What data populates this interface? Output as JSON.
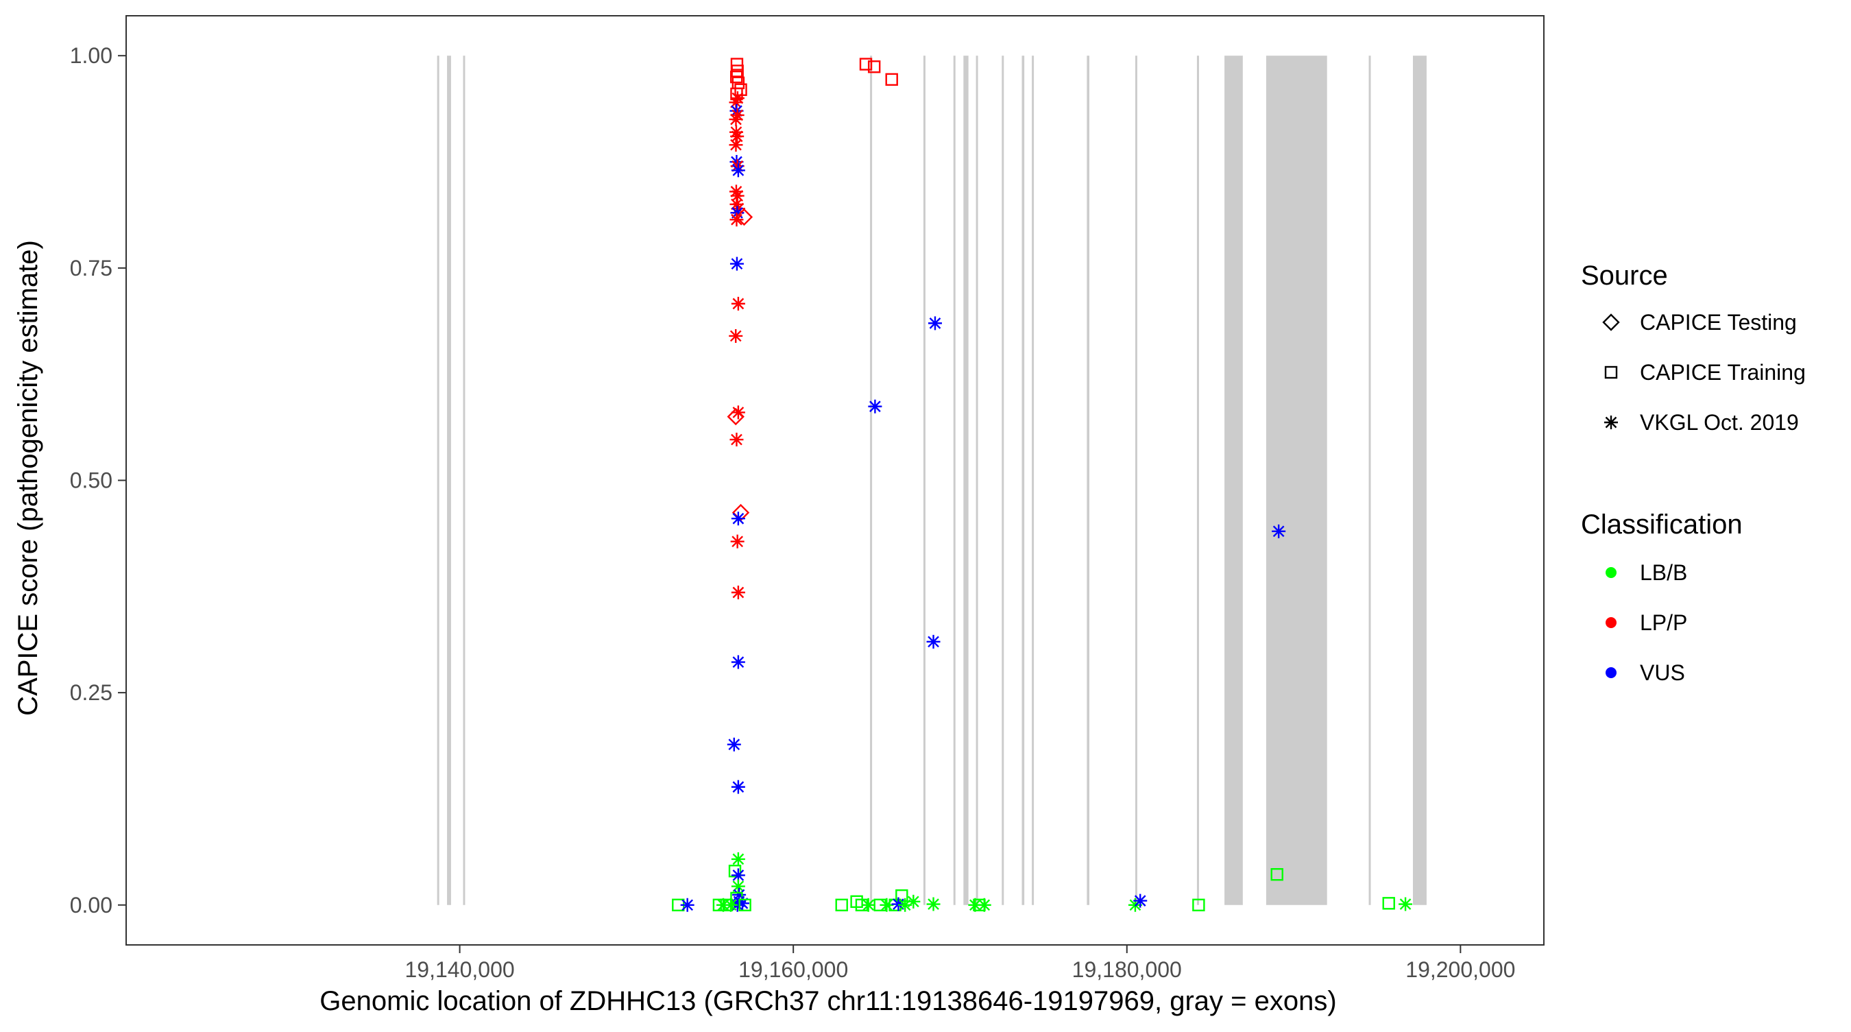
{
  "chart_data": {
    "type": "scatter",
    "xlabel": "Genomic location of ZDHHC13 (GRCh37 chr11:19138646-19197969, gray = exons)",
    "ylabel": "CAPICE score (pathogenicity estimate)",
    "xlim": [
      19120000,
      19205000
    ],
    "ylim": [
      -0.047,
      1.047
    ],
    "x_ticks": [
      19140000,
      19160000,
      19180000,
      19200000
    ],
    "x_tick_labels": [
      "19,140,000",
      "19,160,000",
      "19,180,000",
      "19,200,000"
    ],
    "y_ticks": [
      0,
      0.25,
      0.5,
      0.75,
      1.0
    ],
    "y_tick_labels": [
      "0.00",
      "0.25",
      "0.50",
      "0.75",
      "1.00"
    ],
    "grid": false,
    "exons": [
      [
        19138646,
        19138720
      ],
      [
        19139240,
        19139480
      ],
      [
        19140200,
        19140280
      ],
      [
        19164600,
        19164700
      ],
      [
        19167800,
        19167900
      ],
      [
        19169600,
        19169700
      ],
      [
        19170200,
        19170500
      ],
      [
        19170950,
        19171050
      ],
      [
        19172500,
        19172600
      ],
      [
        19173700,
        19173850
      ],
      [
        19174300,
        19174420
      ],
      [
        19177600,
        19177750
      ],
      [
        19180500,
        19180600
      ],
      [
        19184200,
        19184300
      ],
      [
        19185850,
        19186950
      ],
      [
        19188350,
        19192000
      ],
      [
        19194500,
        19194600
      ],
      [
        19197150,
        19197969
      ]
    ],
    "legend": {
      "position": "right",
      "source_title": "Source",
      "source_items": [
        {
          "label": "CAPICE Testing",
          "shape": "diamond"
        },
        {
          "label": "CAPICE Training",
          "shape": "square"
        },
        {
          "label": "VKGL Oct. 2019",
          "shape": "asterisk"
        }
      ],
      "class_title": "Classification",
      "class_items": [
        {
          "label": "LB/B",
          "color": "#00ff00"
        },
        {
          "label": "LP/P",
          "color": "#ff0000"
        },
        {
          "label": "VUS",
          "color": "#0000ff"
        }
      ]
    },
    "colors": {
      "LB/B": "#00ff00",
      "LP/P": "#ff0000",
      "VUS": "#0000ff",
      "exon": "#cccccc"
    },
    "points": [
      {
        "x": 19156620,
        "y": 0.99,
        "cls": "LP/P",
        "src": "square"
      },
      {
        "x": 19156650,
        "y": 0.982,
        "cls": "LP/P",
        "src": "square"
      },
      {
        "x": 19156590,
        "y": 0.975,
        "cls": "LP/P",
        "src": "square"
      },
      {
        "x": 19156700,
        "y": 0.968,
        "cls": "LP/P",
        "src": "square"
      },
      {
        "x": 19156850,
        "y": 0.96,
        "cls": "LP/P",
        "src": "square"
      },
      {
        "x": 19156600,
        "y": 0.955,
        "cls": "LP/P",
        "src": "square"
      },
      {
        "x": 19156660,
        "y": 0.95,
        "cls": "LP/P",
        "src": "asterisk"
      },
      {
        "x": 19156560,
        "y": 0.945,
        "cls": "LP/P",
        "src": "asterisk"
      },
      {
        "x": 19156600,
        "y": 0.935,
        "cls": "VUS",
        "src": "asterisk"
      },
      {
        "x": 19156650,
        "y": 0.93,
        "cls": "LP/P",
        "src": "asterisk"
      },
      {
        "x": 19156560,
        "y": 0.925,
        "cls": "LP/P",
        "src": "asterisk"
      },
      {
        "x": 19156580,
        "y": 0.91,
        "cls": "LP/P",
        "src": "asterisk"
      },
      {
        "x": 19156630,
        "y": 0.905,
        "cls": "LP/P",
        "src": "asterisk"
      },
      {
        "x": 19156560,
        "y": 0.895,
        "cls": "LP/P",
        "src": "asterisk"
      },
      {
        "x": 19156600,
        "y": 0.875,
        "cls": "VUS",
        "src": "asterisk"
      },
      {
        "x": 19156650,
        "y": 0.87,
        "cls": "LP/P",
        "src": "asterisk"
      },
      {
        "x": 19156700,
        "y": 0.865,
        "cls": "VUS",
        "src": "asterisk"
      },
      {
        "x": 19156580,
        "y": 0.84,
        "cls": "LP/P",
        "src": "asterisk"
      },
      {
        "x": 19156650,
        "y": 0.835,
        "cls": "LP/P",
        "src": "asterisk"
      },
      {
        "x": 19156600,
        "y": 0.825,
        "cls": "LP/P",
        "src": "asterisk"
      },
      {
        "x": 19156700,
        "y": 0.82,
        "cls": "LP/P",
        "src": "asterisk"
      },
      {
        "x": 19156640,
        "y": 0.815,
        "cls": "VUS",
        "src": "asterisk"
      },
      {
        "x": 19157050,
        "y": 0.81,
        "cls": "LP/P",
        "src": "diamond"
      },
      {
        "x": 19156600,
        "y": 0.807,
        "cls": "LP/P",
        "src": "asterisk"
      },
      {
        "x": 19156620,
        "y": 0.755,
        "cls": "VUS",
        "src": "asterisk"
      },
      {
        "x": 19156700,
        "y": 0.708,
        "cls": "LP/P",
        "src": "asterisk"
      },
      {
        "x": 19156550,
        "y": 0.67,
        "cls": "LP/P",
        "src": "asterisk"
      },
      {
        "x": 19156700,
        "y": 0.58,
        "cls": "LP/P",
        "src": "asterisk"
      },
      {
        "x": 19156550,
        "y": 0.575,
        "cls": "LP/P",
        "src": "diamond"
      },
      {
        "x": 19156600,
        "y": 0.548,
        "cls": "LP/P",
        "src": "asterisk"
      },
      {
        "x": 19156850,
        "y": 0.462,
        "cls": "LP/P",
        "src": "diamond"
      },
      {
        "x": 19156700,
        "y": 0.455,
        "cls": "VUS",
        "src": "asterisk"
      },
      {
        "x": 19156650,
        "y": 0.428,
        "cls": "LP/P",
        "src": "asterisk"
      },
      {
        "x": 19156700,
        "y": 0.368,
        "cls": "LP/P",
        "src": "asterisk"
      },
      {
        "x": 19156700,
        "y": 0.286,
        "cls": "VUS",
        "src": "asterisk"
      },
      {
        "x": 19156450,
        "y": 0.189,
        "cls": "VUS",
        "src": "asterisk"
      },
      {
        "x": 19156700,
        "y": 0.139,
        "cls": "VUS",
        "src": "asterisk"
      },
      {
        "x": 19156700,
        "y": 0.054,
        "cls": "LB/B",
        "src": "asterisk"
      },
      {
        "x": 19156500,
        "y": 0.04,
        "cls": "LB/B",
        "src": "square"
      },
      {
        "x": 19156700,
        "y": 0.035,
        "cls": "VUS",
        "src": "asterisk"
      },
      {
        "x": 19156700,
        "y": 0.022,
        "cls": "LB/B",
        "src": "asterisk"
      },
      {
        "x": 19156750,
        "y": 0.012,
        "cls": "VUS",
        "src": "asterisk"
      },
      {
        "x": 19156600,
        "y": 0.008,
        "cls": "LB/B",
        "src": "square"
      },
      {
        "x": 19156750,
        "y": 0.004,
        "cls": "VUS",
        "src": "asterisk"
      },
      {
        "x": 19156950,
        "y": 0.002,
        "cls": "VUS",
        "src": "asterisk"
      },
      {
        "x": 19156650,
        "y": 0.0,
        "cls": "VUS",
        "src": "asterisk"
      },
      {
        "x": 19153100,
        "y": 0.0,
        "cls": "LB/B",
        "src": "square"
      },
      {
        "x": 19153650,
        "y": 0.0,
        "cls": "VUS",
        "src": "asterisk"
      },
      {
        "x": 19155550,
        "y": 0.0,
        "cls": "LB/B",
        "src": "square"
      },
      {
        "x": 19155800,
        "y": 0.0,
        "cls": "LB/B",
        "src": "asterisk"
      },
      {
        "x": 19156000,
        "y": 0.0,
        "cls": "LB/B",
        "src": "square"
      },
      {
        "x": 19156250,
        "y": 0.0,
        "cls": "LB/B",
        "src": "asterisk"
      },
      {
        "x": 19157100,
        "y": 0.0,
        "cls": "LB/B",
        "src": "square"
      },
      {
        "x": 19164350,
        "y": 0.99,
        "cls": "LP/P",
        "src": "square"
      },
      {
        "x": 19164850,
        "y": 0.987,
        "cls": "LP/P",
        "src": "square"
      },
      {
        "x": 19165900,
        "y": 0.972,
        "cls": "LP/P",
        "src": "square"
      },
      {
        "x": 19164900,
        "y": 0.587,
        "cls": "VUS",
        "src": "asterisk"
      },
      {
        "x": 19168500,
        "y": 0.685,
        "cls": "VUS",
        "src": "asterisk"
      },
      {
        "x": 19168400,
        "y": 0.31,
        "cls": "VUS",
        "src": "asterisk"
      },
      {
        "x": 19162900,
        "y": 0.0,
        "cls": "LB/B",
        "src": "square"
      },
      {
        "x": 19163800,
        "y": 0.004,
        "cls": "LB/B",
        "src": "square"
      },
      {
        "x": 19164100,
        "y": 0.0,
        "cls": "LB/B",
        "src": "square"
      },
      {
        "x": 19164500,
        "y": 0.0,
        "cls": "LB/B",
        "src": "asterisk"
      },
      {
        "x": 19165200,
        "y": 0.0,
        "cls": "LB/B",
        "src": "square"
      },
      {
        "x": 19165600,
        "y": 0.0,
        "cls": "LB/B",
        "src": "asterisk"
      },
      {
        "x": 19166100,
        "y": 0.0,
        "cls": "LB/B",
        "src": "square"
      },
      {
        "x": 19166500,
        "y": 0.011,
        "cls": "LB/B",
        "src": "square"
      },
      {
        "x": 19166300,
        "y": 0.001,
        "cls": "VUS",
        "src": "asterisk"
      },
      {
        "x": 19166700,
        "y": 0.0,
        "cls": "LB/B",
        "src": "asterisk"
      },
      {
        "x": 19167200,
        "y": 0.004,
        "cls": "LB/B",
        "src": "asterisk"
      },
      {
        "x": 19168400,
        "y": 0.001,
        "cls": "LB/B",
        "src": "asterisk"
      },
      {
        "x": 19170900,
        "y": 0.0,
        "cls": "LB/B",
        "src": "asterisk"
      },
      {
        "x": 19171150,
        "y": 0.0,
        "cls": "LB/B",
        "src": "square"
      },
      {
        "x": 19171450,
        "y": 0.0,
        "cls": "LB/B",
        "src": "asterisk"
      },
      {
        "x": 19180500,
        "y": 0.0,
        "cls": "LB/B",
        "src": "asterisk"
      },
      {
        "x": 19180800,
        "y": 0.005,
        "cls": "VUS",
        "src": "asterisk"
      },
      {
        "x": 19184300,
        "y": 0.0,
        "cls": "LB/B",
        "src": "square"
      },
      {
        "x": 19189100,
        "y": 0.44,
        "cls": "VUS",
        "src": "asterisk"
      },
      {
        "x": 19189000,
        "y": 0.036,
        "cls": "LB/B",
        "src": "square"
      },
      {
        "x": 19195700,
        "y": 0.002,
        "cls": "LB/B",
        "src": "square"
      },
      {
        "x": 19196700,
        "y": 0.001,
        "cls": "LB/B",
        "src": "asterisk"
      }
    ]
  }
}
